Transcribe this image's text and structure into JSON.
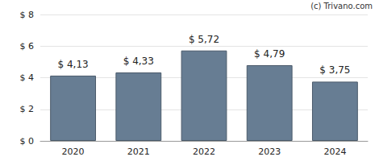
{
  "chart_data": {
    "type": "bar",
    "annotation": "(c) Trivano.com",
    "categories": [
      "2020",
      "2021",
      "2022",
      "2023",
      "2024"
    ],
    "values": [
      4.13,
      4.33,
      5.72,
      4.79,
      3.75
    ],
    "value_labels": [
      "$ 4,13",
      "$ 4,33",
      "$ 5,72",
      "$ 4,79",
      "$ 3,75"
    ],
    "data_labels": true,
    "color": "#677d93",
    "ylim": [
      0,
      8
    ],
    "yticks": [
      {
        "value": 0,
        "label": "$ 0"
      },
      {
        "value": 2,
        "label": "$ 2"
      },
      {
        "value": 4,
        "label": "$ 4"
      },
      {
        "value": 6,
        "label": "$ 6"
      },
      {
        "value": 8,
        "label": "$ 8"
      }
    ],
    "grid": true
  }
}
